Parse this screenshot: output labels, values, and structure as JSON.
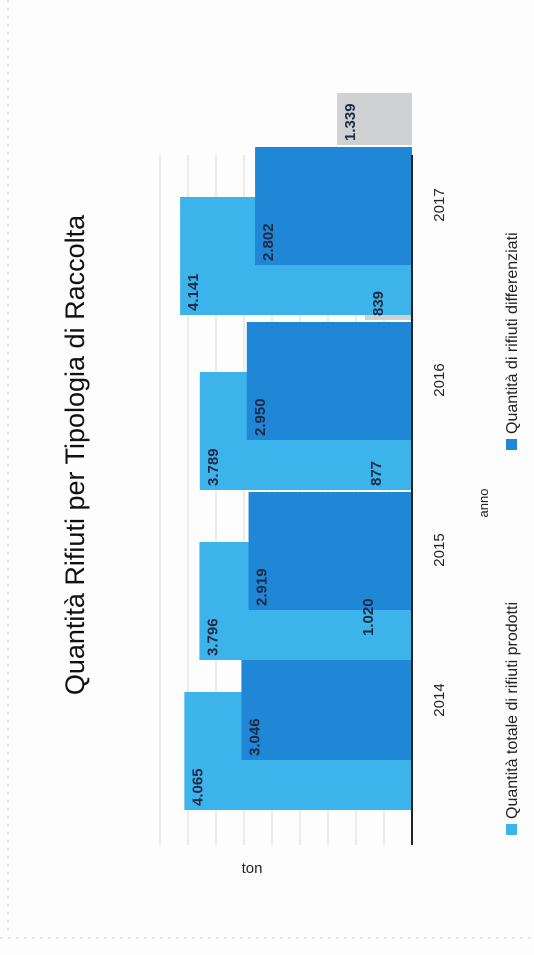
{
  "chart_data": {
    "type": "bar",
    "orientation": "vertical",
    "title": "Quantità Rifiuti per Tipologia di Raccolta",
    "xlabel": "anno",
    "ylabel": "ton",
    "categories": [
      "2014",
      "2015",
      "2016",
      "2017"
    ],
    "ylim": [
      0,
      4500
    ],
    "grid": true,
    "legend_position": "bottom",
    "series": [
      {
        "name": "Quantità totale di rifiuti prodotti",
        "values": [
          4065,
          3796,
          3789,
          4141
        ],
        "labels": [
          "4.065",
          "3.796",
          "3.789",
          "4.141"
        ],
        "color": "#3db3ec"
      },
      {
        "name": "Quantità di rifiuti differenziati",
        "values": [
          3046,
          2919,
          2950,
          2802
        ],
        "labels": [
          "3.046",
          "2.919",
          "2.950",
          "2.802"
        ],
        "color": "#1f87d6"
      },
      {
        "name": "",
        "values": [
          1020,
          877,
          839,
          1339
        ],
        "labels": [
          "1.020",
          "877",
          "839",
          "1.339"
        ],
        "color": "#d0d1d3"
      }
    ]
  }
}
